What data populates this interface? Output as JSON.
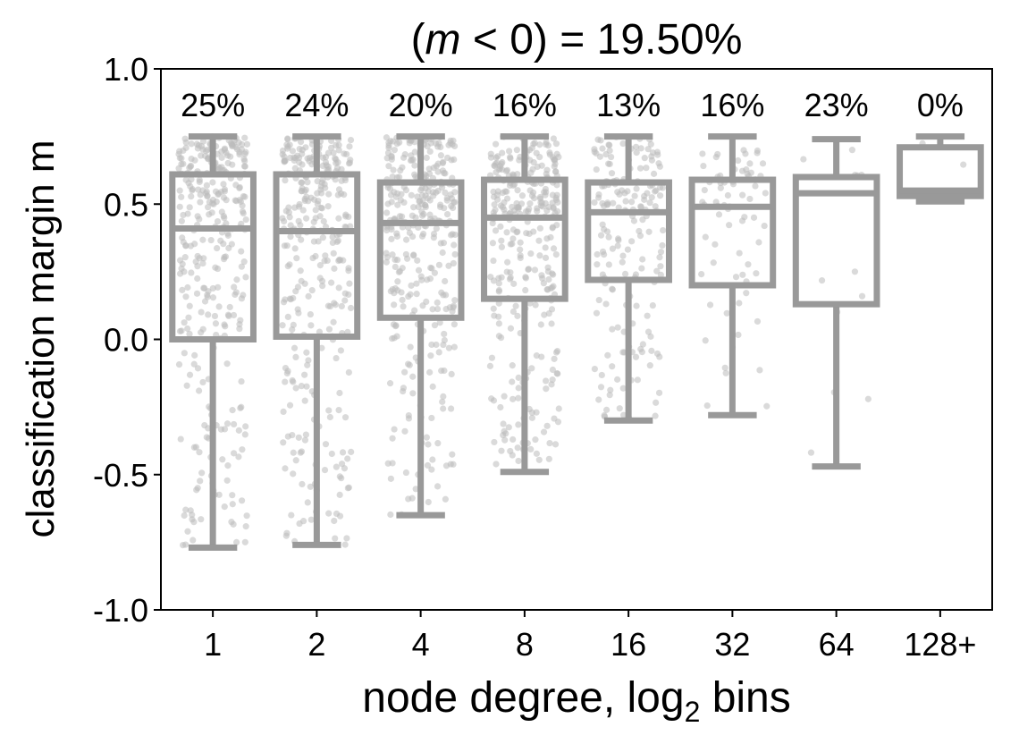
{
  "chart_data": {
    "type": "boxplot",
    "title_prefix": "(",
    "title_var": "m",
    "title_suffix": " < 0) = 19.50%",
    "xlabel": "node degree, log",
    "xlabel_subscript": "2",
    "xlabel_suffix": " bins",
    "ylabel": "classification margin m",
    "ylim": [
      -1.0,
      1.0
    ],
    "yticks": [
      -1.0,
      -0.5,
      0.0,
      0.5,
      1.0
    ],
    "ytick_labels": [
      "-1.0",
      "-0.5",
      "0.0",
      "0.5",
      "1.0"
    ],
    "categories": [
      "1",
      "2",
      "4",
      "8",
      "16",
      "32",
      "64",
      "128+"
    ],
    "pct_labels": [
      "25%",
      "24%",
      "20%",
      "16%",
      "13%",
      "16%",
      "23%",
      "0%"
    ],
    "boxes": [
      {
        "whislo": -0.77,
        "q1": 0.0,
        "med": 0.41,
        "q3": 0.61,
        "whishi": 0.75,
        "points": 320
      },
      {
        "whislo": -0.76,
        "q1": 0.01,
        "med": 0.4,
        "q3": 0.61,
        "whishi": 0.75,
        "points": 320
      },
      {
        "whislo": -0.65,
        "q1": 0.08,
        "med": 0.43,
        "q3": 0.58,
        "whishi": 0.75,
        "points": 340
      },
      {
        "whislo": -0.49,
        "q1": 0.15,
        "med": 0.45,
        "q3": 0.59,
        "whishi": 0.75,
        "points": 320
      },
      {
        "whislo": -0.3,
        "q1": 0.22,
        "med": 0.47,
        "q3": 0.58,
        "whishi": 0.75,
        "points": 180
      },
      {
        "whislo": -0.28,
        "q1": 0.2,
        "med": 0.49,
        "q3": 0.59,
        "whishi": 0.75,
        "points": 70
      },
      {
        "whislo": -0.47,
        "q1": 0.13,
        "med": 0.54,
        "q3": 0.6,
        "whishi": 0.74,
        "points": 12
      },
      {
        "whislo": 0.51,
        "q1": 0.53,
        "med": 0.55,
        "q3": 0.71,
        "whishi": 0.75,
        "points": 6
      }
    ],
    "box_color": "#999999",
    "point_color": "#bbbbbb"
  }
}
